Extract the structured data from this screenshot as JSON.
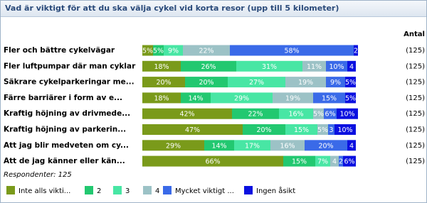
{
  "chart_data": {
    "type": "bar",
    "orientation": "horizontal",
    "stacked": true,
    "title": "Vad är viktigt för att du ska välja cykel vid korta resor (upp till 5 kilometer)",
    "count_header": "Antal",
    "categories": [
      "Fler och bättre cykelvägar",
      "Fler luftpumpar där man cyklar",
      "Säkrare cykelparkeringar me...",
      "Färre barriärer i form av e...",
      "Kraftig höjning av drivmede...",
      "Kraftig höjning av parkerin...",
      "Att jag blir medveten om cy...",
      "Att de jag känner eller kän..."
    ],
    "count_labels": [
      "(125)",
      "(125)",
      "(125)",
      "(125)",
      "(125)",
      "(125)",
      "(125)",
      "(125)"
    ],
    "note": "Respondenter: 125",
    "series": [
      {
        "name": "Inte alls vikti...",
        "color": "#7a9a1a",
        "values": [
          5,
          18,
          20,
          18,
          42,
          47,
          29,
          66
        ],
        "value_labels": [
          "5%",
          "18%",
          "20%",
          "18%",
          "42%",
          "47%",
          "29%",
          "66%"
        ]
      },
      {
        "name": "2",
        "color": "#22c870",
        "values": [
          5,
          26,
          20,
          14,
          22,
          20,
          14,
          15
        ],
        "value_labels": [
          "5%",
          "26%",
          "20%",
          "14%",
          "22%",
          "20%",
          "14%",
          "15%"
        ]
      },
      {
        "name": "3",
        "color": "#48e6a4",
        "values": [
          9,
          31,
          27,
          29,
          16,
          15,
          17,
          7
        ],
        "value_labels": [
          "9%",
          "31%",
          "27%",
          "29%",
          "16%",
          "15%",
          "17%",
          "7%"
        ]
      },
      {
        "name": "4",
        "color": "#9cc2c6",
        "values": [
          22,
          11,
          19,
          19,
          5,
          5,
          16,
          4
        ],
        "value_labels": [
          "22%",
          "11%",
          "19%",
          "19%",
          "5%",
          "5%",
          "16%",
          "4"
        ]
      },
      {
        "name": "Mycket viktigt ...",
        "color": "#3a6ae8",
        "values": [
          58,
          10,
          9,
          15,
          6,
          3,
          20,
          2
        ],
        "value_labels": [
          "58%",
          "10%",
          "9%",
          "15%",
          "6%",
          "3",
          "20%",
          "2"
        ]
      },
      {
        "name": "Ingen åsikt",
        "color": "#0a10e0",
        "values": [
          2,
          4,
          5,
          5,
          10,
          10,
          4,
          6
        ],
        "value_labels": [
          "2",
          "4",
          "5%",
          "5%",
          "10%",
          "10%",
          "4",
          "6%"
        ]
      }
    ]
  }
}
